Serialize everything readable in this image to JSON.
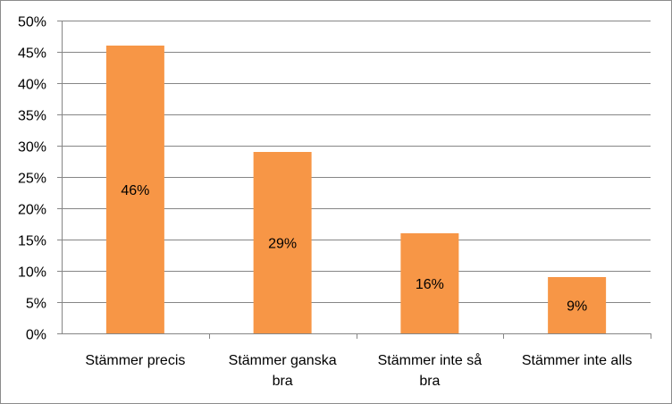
{
  "chart_data": {
    "type": "bar",
    "title": "",
    "xlabel": "",
    "ylabel": "",
    "categories": [
      [
        "Stämmer precis"
      ],
      [
        "Stämmer ganska",
        "bra"
      ],
      [
        "Stämmer inte så",
        "bra"
      ],
      [
        "Stämmer inte alls"
      ]
    ],
    "values": [
      46,
      29,
      16,
      9
    ],
    "data_labels": [
      "46%",
      "29%",
      "16%",
      "9%"
    ],
    "ylim": [
      0,
      50
    ],
    "y_ticks": [
      0,
      5,
      10,
      15,
      20,
      25,
      30,
      35,
      40,
      45,
      50
    ],
    "y_tick_labels": [
      "0%",
      "5%",
      "10%",
      "15%",
      "20%",
      "25%",
      "30%",
      "35%",
      "40%",
      "45%",
      "50%"
    ],
    "grid": true,
    "legend": "none",
    "colors": {
      "bar": "#F79646",
      "grid": "#868686",
      "axis": "#868686",
      "text": "#000000"
    }
  }
}
